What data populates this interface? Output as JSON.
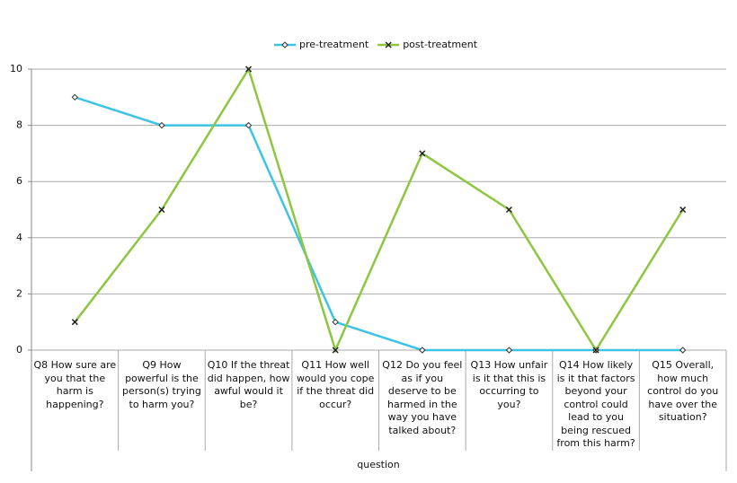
{
  "chart_data": {
    "type": "line",
    "categories": [
      "Q8  How sure are you that the harm is happening?",
      "Q9  How powerful is the person(s) trying to harm you?",
      "Q10  If the threat did happen, how awful would it be?",
      "Q11  How well would you cope if the threat did occur?",
      "Q12  Do you feel as if you deserve to be harmed in the way you have talked about?",
      "Q13  How unfair is it that this is occurring to you?",
      "Q14  How likely is it that factors beyond your control could lead to you being rescued from this harm?",
      "Q15  Overall, how much control do you have over the situation?"
    ],
    "series": [
      {
        "name": "pre-treatment",
        "color": "#3cc4e4",
        "marker": "diamond",
        "values": [
          9,
          8,
          8,
          1,
          0,
          0,
          0,
          0
        ]
      },
      {
        "name": "post-treatment",
        "color": "#8dc63f",
        "marker": "x",
        "values": [
          1,
          5,
          10,
          0,
          7,
          5,
          0,
          5
        ]
      }
    ],
    "x_label": "question",
    "ylim": [
      0,
      10
    ],
    "yticks": [
      0,
      2,
      4,
      6,
      8,
      10
    ],
    "grid": true,
    "legend": "top"
  }
}
